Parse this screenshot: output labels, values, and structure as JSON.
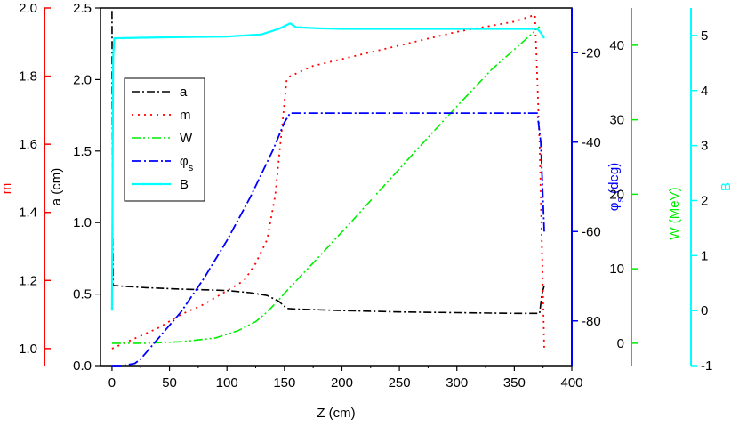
{
  "chart_data": {
    "type": "line",
    "xlabel": "Z (cm)",
    "x_ticks": [
      "0",
      "50",
      "100",
      "150",
      "200",
      "250",
      "300",
      "350",
      "400"
    ],
    "xlim": [
      -10,
      400
    ],
    "axes": {
      "a": {
        "label": "a (cm)",
        "ylim": [
          0,
          2.5
        ],
        "ticks": [
          "0.0",
          "0.5",
          "1.0",
          "1.5",
          "2.0",
          "2.5"
        ],
        "color": "#000000"
      },
      "m": {
        "label": "m",
        "ylim": [
          0.95,
          2.0
        ],
        "ticks": [
          "1.0",
          "1.2",
          "1.4",
          "1.6",
          "1.8",
          "2.0"
        ],
        "color": "#ff0000"
      },
      "phi": {
        "label_main": "φ",
        "label_sub": "s",
        "label_unit": " (deg)",
        "ylim": [
          -90,
          -10
        ],
        "ticks": [
          "-80",
          "-60",
          "-40",
          "-20"
        ],
        "color": "#0000ff"
      },
      "W": {
        "label": "W (MeV)",
        "ylim": [
          -3,
          45
        ],
        "ticks": [
          "0",
          "10",
          "20",
          "30",
          "40"
        ],
        "color": "#00ee00"
      },
      "B": {
        "label": "B",
        "ylim": [
          -1,
          5.5
        ],
        "ticks": [
          "-1",
          "0",
          "1",
          "2",
          "3",
          "4",
          "5"
        ],
        "color": "#00ffff"
      }
    },
    "legend": {
      "placement": "upper-left",
      "entries": [
        {
          "key": "a",
          "label": "a"
        },
        {
          "key": "m",
          "label": "m"
        },
        {
          "key": "W",
          "label": "W"
        },
        {
          "key": "phi",
          "label": "φ",
          "sub": "s"
        },
        {
          "key": "B",
          "label": "B"
        }
      ]
    },
    "series": [
      {
        "key": "a",
        "axis": "a",
        "color": "#000000",
        "dash": "9 3 2 3",
        "width": 1.6,
        "x": [
          0,
          0.5,
          1,
          3,
          10,
          30,
          60,
          100,
          120,
          135,
          145,
          152,
          160,
          200,
          250,
          300,
          350,
          372,
          374,
          376
        ],
        "y": [
          2.48,
          1.0,
          0.56,
          0.56,
          0.555,
          0.545,
          0.535,
          0.525,
          0.51,
          0.49,
          0.45,
          0.4,
          0.395,
          0.385,
          0.375,
          0.37,
          0.365,
          0.365,
          0.5,
          0.56
        ]
      },
      {
        "key": "m",
        "axis": "m",
        "color": "#ff0000",
        "dash": "2 5",
        "width": 1.8,
        "x": [
          0,
          20,
          40,
          60,
          80,
          100,
          115,
          125,
          135,
          142,
          147,
          152,
          155,
          175,
          200,
          250,
          300,
          350,
          368,
          372,
          376
        ],
        "y": [
          1.0,
          1.03,
          1.06,
          1.1,
          1.13,
          1.17,
          1.2,
          1.25,
          1.32,
          1.45,
          1.62,
          1.79,
          1.8,
          1.83,
          1.85,
          1.89,
          1.93,
          1.96,
          1.98,
          1.6,
          1.0
        ]
      },
      {
        "key": "W",
        "axis": "W",
        "color": "#00ee00",
        "dash": "10 3 2 3 2 3",
        "width": 1.6,
        "x": [
          0,
          30,
          60,
          90,
          110,
          125,
          135,
          145,
          150,
          180,
          210,
          240,
          270,
          300,
          330,
          360,
          372
        ],
        "y": [
          0,
          0,
          0.2,
          0.7,
          1.7,
          2.9,
          4.2,
          5.8,
          6.7,
          11.6,
          16.6,
          21.7,
          26.8,
          31.8,
          36.7,
          40.8,
          42.5
        ]
      },
      {
        "key": "phi",
        "axis": "phi",
        "color": "#0000ff",
        "dash": "11 3 2 3",
        "width": 1.8,
        "x": [
          0,
          10,
          20,
          25,
          40,
          60,
          80,
          100,
          120,
          140,
          150,
          155,
          200,
          250,
          300,
          350,
          370,
          373,
          376
        ],
        "y": [
          -90,
          -90,
          -89.5,
          -88.5,
          -84,
          -78,
          -70.5,
          -62,
          -52.5,
          -41.8,
          -35.6,
          -33.5,
          -33.5,
          -33.5,
          -33.5,
          -33.5,
          -33.5,
          -40,
          -60
        ]
      },
      {
        "key": "B",
        "axis": "B",
        "color": "#00ffff",
        "dash": "",
        "width": 2.2,
        "x": [
          0,
          1,
          2,
          5,
          30,
          60,
          100,
          130,
          145,
          155,
          160,
          180,
          200,
          250,
          300,
          350,
          370,
          373,
          376
        ],
        "y": [
          0.0,
          4.6,
          4.95,
          4.95,
          4.96,
          4.97,
          4.98,
          5.02,
          5.12,
          5.22,
          5.15,
          5.13,
          5.12,
          5.12,
          5.12,
          5.12,
          5.12,
          5.05,
          4.95
        ]
      }
    ]
  }
}
